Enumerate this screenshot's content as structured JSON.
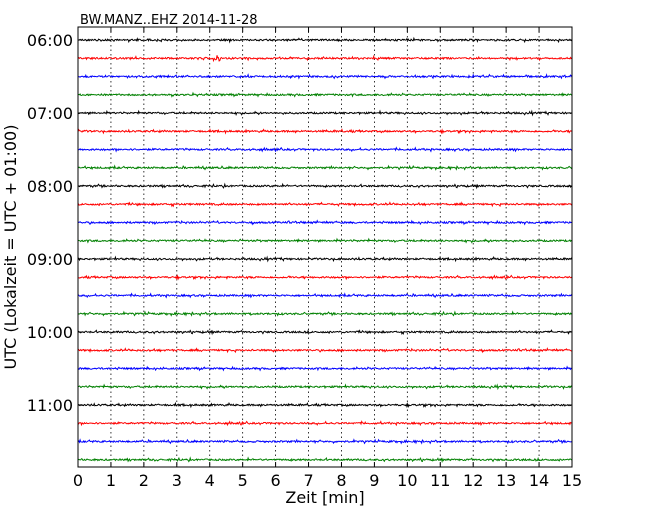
{
  "chart_data": {
    "type": "line",
    "title": "BW.MANZ..EHZ 2014-11-28",
    "xlabel": "Zeit  [min]",
    "ylabel": "UTC (Lokalzeit = UTC + 01:00)",
    "xlim": [
      0,
      15
    ],
    "x_ticks": [
      "0",
      "1",
      "2",
      "3",
      "4",
      "5",
      "6",
      "7",
      "8",
      "9",
      "10",
      "11",
      "12",
      "13",
      "14",
      "15"
    ],
    "y_tick_labels": [
      "06:00",
      "07:00",
      "08:00",
      "09:00",
      "10:00",
      "11:00"
    ],
    "grid": "vertical dotted",
    "trace_interval_min": 15,
    "first_trace_utc": "06:00",
    "trace_count": 24,
    "colors": [
      "#000000",
      "#ff0000",
      "#0000ff",
      "#008000"
    ]
  }
}
